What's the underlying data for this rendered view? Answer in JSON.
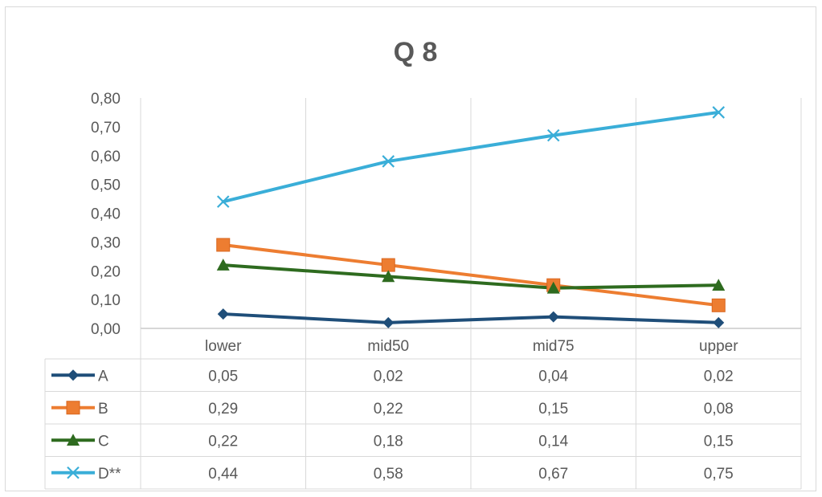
{
  "chart_data": {
    "type": "line",
    "title": "Q 8",
    "categories": [
      "lower",
      "mid50",
      "mid75",
      "upper"
    ],
    "ylim": [
      0,
      0.8
    ],
    "yticks": [
      "0,00",
      "0,10",
      "0,20",
      "0,30",
      "0,40",
      "0,50",
      "0,60",
      "0,70",
      "0,80"
    ],
    "grid": "vertical",
    "legend": "data table below chart",
    "series": [
      {
        "name": "A",
        "color": "#1f4e79",
        "marker": "diamond",
        "values": [
          0.05,
          0.02,
          0.04,
          0.02
        ],
        "labels": [
          "0,05",
          "0,02",
          "0,04",
          "0,02"
        ]
      },
      {
        "name": "B",
        "color": "#ed7d31",
        "marker": "square",
        "values": [
          0.29,
          0.22,
          0.15,
          0.08
        ],
        "labels": [
          "0,29",
          "0,22",
          "0,15",
          "0,08"
        ]
      },
      {
        "name": "C",
        "color": "#2e6b1f",
        "marker": "triangle",
        "values": [
          0.22,
          0.18,
          0.14,
          0.15
        ],
        "labels": [
          "0,22",
          "0,18",
          "0,14",
          "0,15"
        ]
      },
      {
        "name": "D**",
        "color": "#3aaed8",
        "marker": "x",
        "values": [
          0.44,
          0.58,
          0.67,
          0.75
        ],
        "labels": [
          "0,44",
          "0,58",
          "0,67",
          "0,75"
        ]
      }
    ]
  }
}
